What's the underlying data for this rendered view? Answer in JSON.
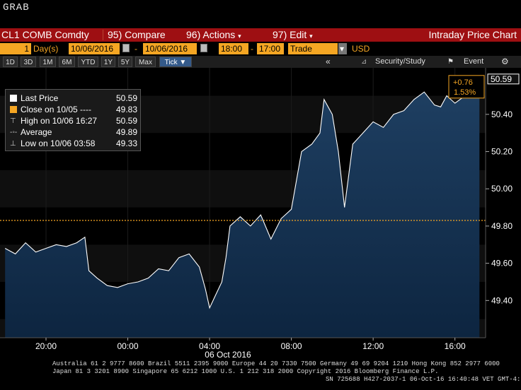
{
  "header": {
    "app_title": "GRAB"
  },
  "menubar": {
    "security": "CL1 COMB Comdty",
    "compare": "95) Compare",
    "actions": "96) Actions",
    "edit": "97) Edit",
    "title": "Intraday Price Chart"
  },
  "params": {
    "period_count": "1",
    "period_unit": "Day(s)",
    "start_date": "10/06/2016",
    "end_date": "10/06/2016",
    "start_time": "18:00",
    "end_time": "17:00",
    "field": "Trade",
    "currency": "USD"
  },
  "toolbar": {
    "ranges": [
      "1D",
      "3D",
      "1M",
      "6M",
      "YTD",
      "1Y",
      "5Y",
      "Max"
    ],
    "tick_label": "Tick ▼",
    "security_study": "Security/Study",
    "event": "Event"
  },
  "legend": {
    "items": [
      {
        "name": "Last Price",
        "value": "50.59",
        "color": "#ffffff"
      },
      {
        "name": "Close on 10/05 ----",
        "value": "49.83",
        "color": "#f5a623"
      },
      {
        "name": "High on 10/06 16:27",
        "value": "50.59",
        "color": "#cccccc"
      },
      {
        "name": "Average",
        "value": "49.89",
        "color": "#cccccc"
      },
      {
        "name": "Low on 10/06 03:58",
        "value": "49.33",
        "color": "#cccccc"
      }
    ]
  },
  "chart_data": {
    "type": "line",
    "title": "",
    "xlabel": "06 Oct 2016",
    "ylabel": "",
    "x_ticks": [
      "20:00",
      "00:00",
      "04:00",
      "08:00",
      "12:00",
      "16:00"
    ],
    "y_ticks": [
      "49.40",
      "49.60",
      "49.80",
      "50.00",
      "50.20",
      "50.40"
    ],
    "ylim": [
      49.2,
      50.65
    ],
    "xlim_hours": [
      17.75,
      41.5
    ],
    "reference_line": {
      "label": "Close on 10/05",
      "value": 49.83,
      "color": "#f5a623"
    },
    "last_price_label": "50.59",
    "change": "+0.76",
    "change_pct": "1.53%",
    "series": [
      {
        "name": "Last Price",
        "x_hours": [
          18.0,
          18.5,
          19.0,
          19.5,
          20.0,
          20.5,
          21.0,
          21.5,
          21.9,
          22.1,
          22.5,
          23.0,
          23.5,
          24.0,
          24.5,
          25.0,
          25.5,
          26.0,
          26.5,
          27.0,
          27.5,
          27.8,
          28.0,
          28.3,
          28.6,
          28.8,
          29.0,
          29.5,
          30.0,
          30.5,
          31.0,
          31.5,
          32.0,
          32.5,
          33.0,
          33.4,
          33.6,
          34.0,
          34.3,
          34.6,
          35.0,
          35.5,
          36.0,
          36.5,
          37.0,
          37.5,
          38.0,
          38.5,
          39.0,
          39.3,
          39.6,
          40.0,
          40.5,
          41.0,
          41.2
        ],
        "values": [
          49.68,
          49.65,
          49.71,
          49.66,
          49.68,
          49.7,
          49.69,
          49.71,
          49.74,
          49.56,
          49.52,
          49.48,
          49.47,
          49.49,
          49.5,
          49.52,
          49.57,
          49.56,
          49.63,
          49.65,
          49.58,
          49.46,
          49.36,
          49.43,
          49.5,
          49.63,
          49.8,
          49.85,
          49.8,
          49.86,
          49.73,
          49.84,
          49.89,
          50.2,
          50.24,
          50.3,
          50.48,
          50.4,
          50.2,
          49.9,
          50.24,
          50.3,
          50.36,
          50.33,
          50.4,
          50.42,
          50.48,
          50.52,
          50.45,
          50.44,
          50.5,
          50.46,
          50.5,
          50.56,
          50.59
        ]
      }
    ]
  },
  "footer": {
    "line1": "Australia 61 2 9777 8600 Brazil 5511 2395 9000 Europe 44 20 7330 7500 Germany 49 69 9204 1210 Hong Kong 852 2977 6000",
    "line2": "Japan 81 3 3201 8900       Singapore 65 6212 1000       U.S. 1 212 318 2000            Copyright 2016 Bloomberg Finance L.P.",
    "line3": "SN 725688 H427-2037-1 06-Oct-16 16:40:48 VET  GMT-4:00"
  }
}
